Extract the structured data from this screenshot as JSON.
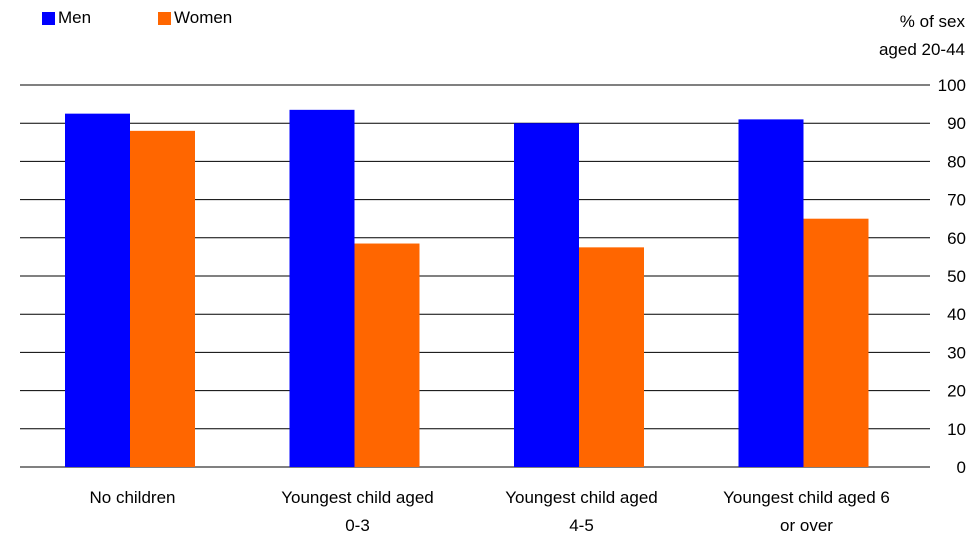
{
  "chart_data": {
    "type": "bar",
    "ylabel_line1": "% of sex",
    "ylabel_line2": "aged 20-44",
    "ylim": [
      0,
      100
    ],
    "yticks": [
      0,
      10,
      20,
      30,
      40,
      50,
      60,
      70,
      80,
      90,
      100
    ],
    "grid": true,
    "legend_position": "top-left",
    "categories": [
      {
        "line1": "No children",
        "line2": ""
      },
      {
        "line1": "Youngest child aged",
        "line2": "0-3"
      },
      {
        "line1": "Youngest child aged",
        "line2": "4-5"
      },
      {
        "line1": "Youngest child aged 6",
        "line2": "or over"
      }
    ],
    "series": [
      {
        "name": "Men",
        "color": "#0000ff",
        "values": [
          92.5,
          93.5,
          90,
          91
        ]
      },
      {
        "name": "Women",
        "color": "#ff6600",
        "values": [
          88,
          58.5,
          57.5,
          65
        ]
      }
    ]
  }
}
